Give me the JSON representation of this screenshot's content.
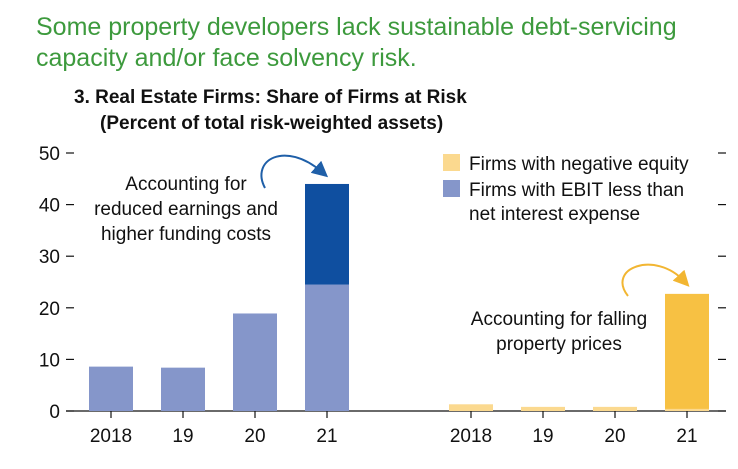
{
  "headline": "Some property developers lack sustainable debt-servicing capacity and/or face solvency risk.",
  "chart_data": {
    "type": "bar",
    "title": "3. Real Estate Firms: Share of Firms at Risk",
    "subtitle": "(Percent of total risk-weighted assets)",
    "ylim": [
      0,
      50
    ],
    "yticks": [
      0,
      10,
      20,
      30,
      40,
      50
    ],
    "ytick_labels": [
      "0",
      "10",
      "20",
      "30",
      "40",
      "50"
    ],
    "grid": false,
    "legend_position": "top-right",
    "legend": [
      {
        "label": "Firms with negative equity",
        "color": "#fbd98f"
      },
      {
        "label": "Firms with EBIT less than net interest expense",
        "lines": [
          "Firms with EBIT less than",
          "net interest expense"
        ],
        "color": "#8596ca"
      }
    ],
    "groups": [
      {
        "series": "Firms with EBIT less than net interest expense",
        "categories": [
          "2018",
          "19",
          "20",
          "21"
        ],
        "values": [
          8.6,
          8.4,
          18.9,
          24.5
        ],
        "adjustment": {
          "category": "21",
          "value": 19.5,
          "color": "#0f4fa0"
        }
      },
      {
        "series": "Firms with negative equity",
        "categories": [
          "2018",
          "19",
          "20",
          "21"
        ],
        "values": [
          1.3,
          0.8,
          0.8,
          0.4
        ],
        "adjustment": {
          "category": "21",
          "value": 22.3,
          "color": "#f7c143"
        }
      }
    ],
    "annotations": [
      {
        "lines": [
          "Accounting for",
          "reduced earnings and",
          "higher funding costs"
        ]
      },
      {
        "lines": [
          "Accounting for falling",
          "property prices"
        ]
      }
    ]
  }
}
